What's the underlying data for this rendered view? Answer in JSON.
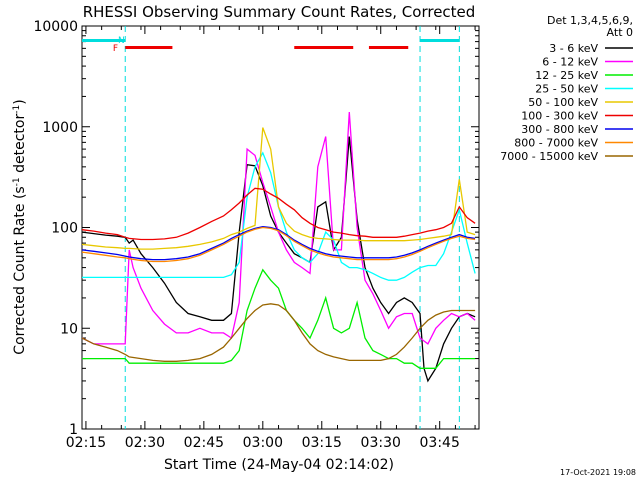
{
  "chart_data": {
    "type": "line",
    "title": "RHESSI Observing Summary Count Rates, Corrected",
    "xlabel": "Start Time (24-May-04 02:14:02)",
    "ylabel_main": "Corrected Count Rate (s",
    "ylabel_exp1": "-1",
    "ylabel_mid": " detector",
    "ylabel_exp2": "-1",
    "ylabel_end": ")",
    "y_scale": "log",
    "ylim": [
      1,
      10000
    ],
    "xlim_minutes": [
      0,
      101
    ],
    "x_ticks": [
      {
        "label": "02:15",
        "min": 1
      },
      {
        "label": "02:30",
        "min": 16
      },
      {
        "label": "02:45",
        "min": 31
      },
      {
        "label": "03:00",
        "min": 46
      },
      {
        "label": "03:15",
        "min": 61
      },
      {
        "label": "03:30",
        "min": 76
      },
      {
        "label": "03:45",
        "min": 91
      }
    ],
    "y_ticks": [
      {
        "label": "1",
        "value": 1
      },
      {
        "label": "10",
        "value": 10
      },
      {
        "label": "100",
        "value": 100
      },
      {
        "label": "1000",
        "value": 1000
      },
      {
        "label": "10000",
        "value": 10000
      }
    ],
    "legend_title": [
      "Det 1,3,4,5,6,9,",
      "Att 0"
    ],
    "legend_position": "outside-right",
    "timestamp": "17-Oct-2021 19:08",
    "flags": [
      {
        "label": "N",
        "color": "#00dddd",
        "min": 10
      },
      {
        "label": "F",
        "color": "#ee0000",
        "min": 8.5
      }
    ],
    "night_markers_min": [
      11,
      86,
      96
    ],
    "night_bars": [
      {
        "start": 0,
        "end": 11,
        "color": "#00dddd"
      },
      {
        "start": 86,
        "end": 96,
        "color": "#00dddd"
      }
    ],
    "flare_bars": [
      {
        "start": 11,
        "end": 23,
        "color": "#ee0000"
      },
      {
        "start": 54,
        "end": 69,
        "color": "#ee0000"
      },
      {
        "start": 73,
        "end": 83,
        "color": "#ee0000"
      }
    ],
    "series": [
      {
        "name": "3 - 6 keV",
        "color": "#000000",
        "x": [
          0,
          3,
          6,
          9,
          11,
          12,
          13,
          15,
          18,
          21,
          24,
          27,
          30,
          33,
          36,
          38,
          40,
          42,
          44,
          46,
          48,
          50,
          52,
          54,
          56,
          58,
          60,
          62,
          64,
          66,
          68,
          70,
          72,
          74,
          76,
          78,
          80,
          82,
          84,
          86,
          87,
          88,
          90,
          92,
          94,
          96,
          98,
          100
        ],
        "y": [
          90,
          87,
          84,
          82,
          80,
          70,
          75,
          55,
          40,
          28,
          18,
          14,
          13,
          12,
          12,
          14,
          90,
          420,
          410,
          260,
          130,
          90,
          70,
          55,
          50,
          45,
          160,
          180,
          60,
          80,
          800,
          120,
          40,
          25,
          18,
          14,
          18,
          20,
          18,
          14,
          4,
          3,
          4,
          7,
          10,
          13,
          14,
          13
        ]
      },
      {
        "name": "6 - 12 keV",
        "color": "#ff00ff",
        "x": [
          0,
          3,
          6,
          9,
          11,
          12,
          13,
          15,
          18,
          21,
          24,
          27,
          30,
          33,
          36,
          38,
          40,
          42,
          44,
          46,
          48,
          50,
          52,
          54,
          56,
          58,
          60,
          62,
          64,
          66,
          68,
          70,
          72,
          74,
          76,
          78,
          80,
          82,
          84,
          86,
          88,
          90,
          92,
          94,
          96,
          98,
          100
        ],
        "y": [
          8,
          7,
          7,
          7,
          7,
          60,
          40,
          25,
          15,
          11,
          9,
          9,
          10,
          9,
          9,
          8,
          18,
          600,
          520,
          280,
          160,
          90,
          60,
          45,
          40,
          35,
          400,
          800,
          60,
          60,
          1400,
          100,
          30,
          22,
          15,
          10,
          13,
          14,
          14,
          8,
          7,
          10,
          12,
          14,
          13,
          14,
          12
        ]
      },
      {
        "name": "12 - 25 keV",
        "color": "#00ee00",
        "x": [
          0,
          3,
          6,
          9,
          11,
          12,
          15,
          18,
          21,
          24,
          27,
          30,
          33,
          36,
          38,
          40,
          42,
          44,
          46,
          48,
          50,
          52,
          54,
          56,
          58,
          60,
          62,
          64,
          66,
          68,
          70,
          72,
          74,
          76,
          78,
          80,
          82,
          84,
          86,
          88,
          90,
          92,
          94,
          96,
          98,
          100
        ],
        "y": [
          5,
          5,
          5,
          5,
          5,
          4.5,
          4.5,
          4.5,
          4.5,
          4.5,
          4.5,
          4.5,
          4.5,
          4.5,
          4.8,
          6,
          15,
          25,
          38,
          30,
          25,
          15,
          12,
          10,
          8,
          12,
          20,
          10,
          9,
          10,
          18,
          8,
          6,
          5.5,
          5,
          5,
          4.5,
          4.5,
          4,
          4,
          4,
          5,
          5,
          5,
          5,
          5
        ]
      },
      {
        "name": "25 - 50 keV",
        "color": "#00ffff",
        "x": [
          0,
          3,
          6,
          9,
          11,
          12,
          15,
          18,
          21,
          24,
          27,
          30,
          33,
          36,
          38,
          40,
          42,
          44,
          46,
          48,
          50,
          52,
          54,
          56,
          58,
          60,
          62,
          64,
          66,
          68,
          70,
          72,
          74,
          76,
          78,
          80,
          82,
          84,
          86,
          88,
          90,
          92,
          94,
          96,
          98,
          100
        ],
        "y": [
          32,
          32,
          32,
          32,
          32,
          32,
          32,
          32,
          32,
          32,
          32,
          32,
          32,
          32,
          34,
          45,
          200,
          400,
          550,
          350,
          160,
          90,
          60,
          50,
          45,
          55,
          90,
          75,
          45,
          40,
          40,
          38,
          35,
          32,
          30,
          30,
          32,
          36,
          40,
          42,
          42,
          55,
          90,
          150,
          70,
          35
        ]
      },
      {
        "name": "50 - 100 keV",
        "color": "#e8c800",
        "x": [
          0,
          3,
          6,
          9,
          11,
          12,
          15,
          18,
          21,
          24,
          27,
          30,
          33,
          36,
          38,
          40,
          42,
          44,
          46,
          48,
          50,
          52,
          54,
          56,
          58,
          60,
          62,
          64,
          66,
          68,
          70,
          72,
          74,
          76,
          78,
          80,
          82,
          84,
          86,
          88,
          90,
          92,
          94,
          96,
          98,
          100
        ],
        "y": [
          68,
          66,
          64,
          63,
          62,
          62,
          61,
          61,
          62,
          63,
          65,
          68,
          72,
          78,
          85,
          90,
          98,
          105,
          980,
          600,
          160,
          110,
          92,
          85,
          80,
          78,
          77,
          76,
          75,
          75,
          75,
          74,
          74,
          74,
          74,
          74,
          74,
          75,
          76,
          78,
          80,
          82,
          85,
          300,
          90,
          85
        ]
      },
      {
        "name": "100 - 300 keV",
        "color": "#ee0000",
        "x": [
          0,
          3,
          6,
          9,
          11,
          12,
          15,
          18,
          21,
          24,
          27,
          30,
          33,
          36,
          38,
          40,
          42,
          44,
          46,
          48,
          50,
          52,
          54,
          56,
          58,
          60,
          62,
          64,
          66,
          68,
          70,
          72,
          74,
          76,
          78,
          80,
          82,
          84,
          86,
          88,
          90,
          92,
          94,
          96,
          98,
          100
        ],
        "y": [
          95,
          92,
          88,
          85,
          80,
          78,
          76,
          76,
          77,
          80,
          88,
          100,
          115,
          130,
          150,
          175,
          210,
          245,
          240,
          215,
          195,
          170,
          150,
          125,
          110,
          100,
          95,
          90,
          88,
          85,
          83,
          82,
          80,
          80,
          80,
          80,
          82,
          85,
          88,
          92,
          95,
          100,
          110,
          160,
          125,
          110
        ]
      },
      {
        "name": "300 - 800 keV",
        "color": "#0000ee",
        "x": [
          0,
          3,
          6,
          9,
          11,
          12,
          15,
          18,
          21,
          24,
          27,
          30,
          33,
          36,
          38,
          40,
          42,
          44,
          46,
          48,
          50,
          52,
          54,
          56,
          58,
          60,
          62,
          64,
          66,
          68,
          70,
          72,
          74,
          76,
          78,
          80,
          82,
          84,
          86,
          88,
          90,
          92,
          94,
          96,
          98,
          100
        ],
        "y": [
          60,
          58,
          56,
          54,
          52,
          51,
          49,
          48,
          48,
          49,
          51,
          55,
          62,
          70,
          78,
          85,
          92,
          98,
          102,
          100,
          95,
          85,
          75,
          68,
          62,
          58,
          55,
          53,
          52,
          51,
          50,
          50,
          50,
          50,
          50,
          51,
          53,
          56,
          60,
          65,
          70,
          75,
          80,
          85,
          80,
          78
        ]
      },
      {
        "name": "800 - 7000 keV",
        "color": "#ff8800",
        "x": [
          0,
          3,
          6,
          9,
          11,
          12,
          15,
          18,
          21,
          24,
          27,
          30,
          33,
          36,
          38,
          40,
          42,
          44,
          46,
          48,
          50,
          52,
          54,
          56,
          58,
          60,
          62,
          64,
          66,
          68,
          70,
          72,
          74,
          76,
          78,
          80,
          82,
          84,
          86,
          88,
          90,
          92,
          94,
          96,
          98,
          100
        ],
        "y": [
          57,
          55,
          53,
          51,
          50,
          49,
          47,
          46,
          46,
          47,
          49,
          53,
          60,
          68,
          75,
          82,
          90,
          96,
          100,
          98,
          93,
          83,
          73,
          66,
          60,
          56,
          53,
          51,
          50,
          49,
          48,
          48,
          48,
          48,
          48,
          49,
          51,
          54,
          58,
          63,
          68,
          73,
          78,
          82,
          78,
          76
        ]
      },
      {
        "name": "7000 - 15000 keV",
        "color": "#996600",
        "x": [
          0,
          3,
          6,
          9,
          11,
          12,
          15,
          18,
          21,
          24,
          27,
          30,
          33,
          36,
          38,
          40,
          42,
          44,
          46,
          48,
          50,
          52,
          54,
          56,
          58,
          60,
          62,
          64,
          66,
          68,
          70,
          72,
          74,
          76,
          78,
          80,
          82,
          84,
          86,
          88,
          90,
          92,
          94,
          96,
          98,
          100
        ],
        "y": [
          8,
          7,
          6.5,
          6,
          5.5,
          5.2,
          5,
          4.8,
          4.7,
          4.7,
          4.8,
          5,
          5.5,
          6.5,
          8,
          10,
          12.5,
          15,
          17,
          17.5,
          17,
          15,
          12,
          9,
          7,
          6,
          5.5,
          5.2,
          5,
          4.8,
          4.8,
          4.8,
          4.8,
          4.8,
          5,
          5.5,
          6.5,
          8,
          10,
          12,
          13.5,
          14.5,
          15,
          15,
          15,
          15
        ]
      }
    ]
  }
}
